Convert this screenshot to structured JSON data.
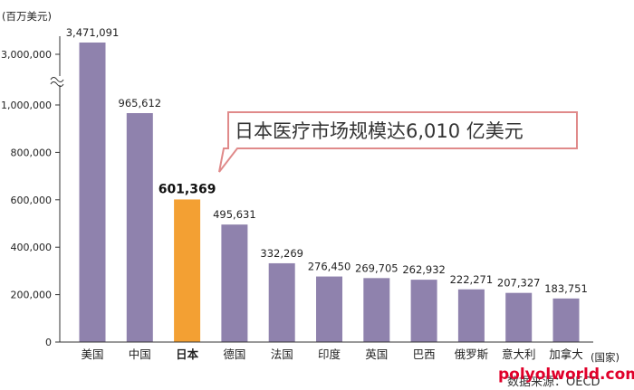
{
  "chart_data": {
    "type": "bar",
    "ylabel": "(百万美元)",
    "xlabel": "(国家)",
    "categories": [
      "美国",
      "中国",
      "日本",
      "德国",
      "法国",
      "印度",
      "英国",
      "巴西",
      "俄罗斯",
      "意大利",
      "加拿大"
    ],
    "values": [
      3471091,
      965612,
      601369,
      495631,
      332269,
      276450,
      269705,
      262932,
      222271,
      207327,
      183751
    ],
    "value_labels": [
      "3,471,091",
      "965,612",
      "601,369",
      "495,631",
      "332,269",
      "276,450",
      "269,705",
      "262,932",
      "222,271",
      "207,327",
      "183,751"
    ],
    "highlight_index": 2,
    "y_ticks": [
      "0",
      "200,000",
      "400,000",
      "600,000",
      "800,000",
      "1,000,000",
      "3,000,000"
    ],
    "ylim": [
      0,
      1000000
    ],
    "axis_break": true,
    "bar_color": "#8f82ad",
    "highlight_color": "#f3a033",
    "annotation": "日本医疗市场规模达6,010 亿美元",
    "annotation_border_color": "#e08a8a"
  },
  "watermark": "polyolworld.com",
  "source": "数据来源：OECD"
}
